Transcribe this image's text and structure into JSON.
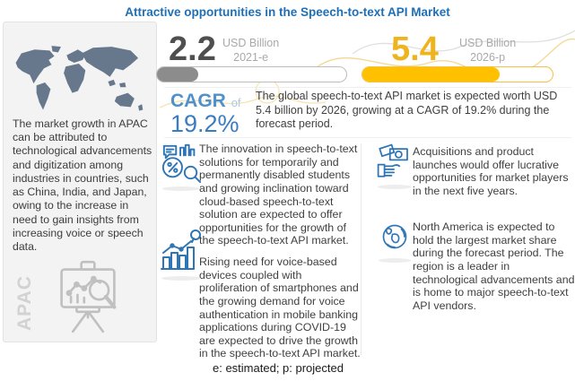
{
  "title": "Attractive opportunities in the Speech-to-text API Market",
  "footnote": "e: estimated; p: projected",
  "colors": {
    "title_blue": "#1f6fb5",
    "icon_blue": "#2e75b6",
    "bar_gray": "#8c8c8c",
    "bar_yellow": "#ffc000",
    "value_yellow": "#efb41d",
    "cagr_blue": "#3a7cc0",
    "map_slate": "#67788c"
  },
  "apac_panel": {
    "label": "APAC",
    "text": "The market growth in APAC can be attributed to technological advancements and digitization among industries in countries, such as China, India, and Japan, owing to the increase in need to gain insights from increasing voice or speech data."
  },
  "stats": [
    {
      "value": "2.2",
      "unit": "USD Billion",
      "period": "2021-e",
      "bar_fill_pct": 22,
      "bar_color": "#8c8c8c"
    },
    {
      "value": "5.4",
      "unit": "USD Billion",
      "period": "2026-p",
      "bar_fill_pct": 72,
      "bar_color": "#ffc000"
    }
  ],
  "cagr": {
    "label": "CAGR",
    "connector": "of",
    "value": "19.2%",
    "summary": "The global speech-to-text API market is expected worth USD 5.4 billion by 2026, growing at a CAGR of 19.2% during the forecast period."
  },
  "bullets": {
    "middle": [
      {
        "icon": "speech-analytics-icon",
        "text": "The innovation in speech-to-text solutions for temporarily and permanently disabled students and growing inclination toward cloud-based speech-to-text solution are expected to offer opportunities for the growth of the speech-to-text API market."
      },
      {
        "icon": "growth-chart-icon",
        "text": "Rising need for voice-based devices coupled with proliferation of smartphones and the growing demand for voice authentication in mobile banking applications during COVID-19 are expected to drive the growth in the speech-to-text API market."
      }
    ],
    "right": [
      {
        "icon": "money-hand-icon",
        "text": "Acquisitions and product launches would offer lucrative opportunities for market players in the next five years."
      },
      {
        "icon": "globe-icon",
        "text": "North America is expected to hold the largest market share during the forecast period. The region is a leader in technological advancements and is home to major speech-to-text API vendors."
      }
    ]
  },
  "chart_data": {
    "type": "bar",
    "categories": [
      "2021-e",
      "2026-p"
    ],
    "values": [
      2.2,
      5.4
    ],
    "unit": "USD Billion",
    "title": "Attractive opportunities in the Speech-to-text API Market",
    "cagr_pct": 19.2,
    "notes": "e: estimated; p: projected"
  }
}
